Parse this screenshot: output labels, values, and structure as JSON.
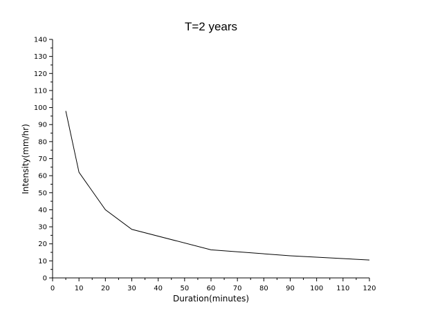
{
  "chart_data": {
    "type": "line",
    "title": "T=2 years",
    "xlabel": "Duration(minutes)",
    "ylabel": "Intensity(mm/hr)",
    "xlim": [
      0,
      120
    ],
    "ylim": [
      0,
      140
    ],
    "xticks": [
      0,
      10,
      20,
      30,
      40,
      50,
      60,
      70,
      80,
      90,
      100,
      110,
      120
    ],
    "yticks": [
      0,
      10,
      20,
      30,
      40,
      50,
      60,
      70,
      80,
      90,
      100,
      110,
      120,
      130,
      140
    ],
    "grid": false,
    "legend": "none",
    "series": [
      {
        "color": "#000000",
        "x": [
          5,
          10,
          20,
          30,
          60,
          90,
          120
        ],
        "y": [
          98,
          62,
          40,
          28.5,
          16.5,
          13,
          10.5
        ]
      }
    ]
  }
}
